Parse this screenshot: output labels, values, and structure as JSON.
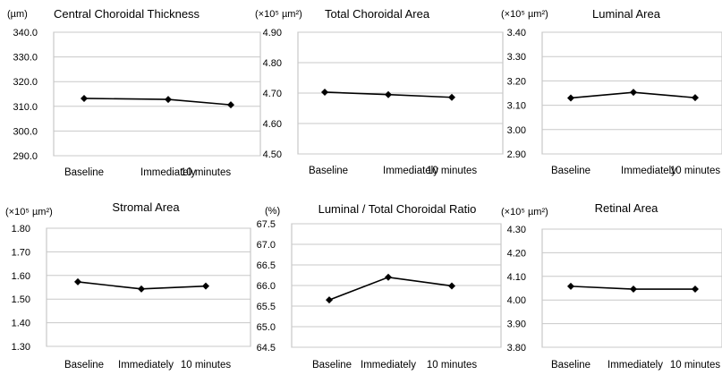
{
  "chart_data": [
    {
      "type": "line",
      "title": "Central Choroidal Thickness",
      "unit_label": "(µm)",
      "categories": [
        "Baseline",
        "Immediately",
        "10 minutes"
      ],
      "values": [
        313.2,
        312.8,
        310.6
      ],
      "ylim": [
        290.0,
        340.0
      ],
      "yticks": [
        "340.0",
        "330.0",
        "320.0",
        "310.0",
        "300.0",
        "290.0"
      ],
      "grid": true
    },
    {
      "type": "line",
      "title": "Total Choroidal Area",
      "unit_label": "(×10⁵ µm²)",
      "categories": [
        "Baseline",
        "Immediately",
        "10 minutes"
      ],
      "values": [
        4.703,
        4.695,
        4.686
      ],
      "ylim": [
        4.5,
        4.9
      ],
      "yticks": [
        "4.90",
        "4.80",
        "4.70",
        "4.60",
        "4.50"
      ],
      "grid": true
    },
    {
      "type": "line",
      "title": "Luminal Area",
      "unit_label": "(×10⁵ µm²)",
      "categories": [
        "Baseline",
        "Immediately",
        "10 minutes"
      ],
      "values": [
        3.13,
        3.153,
        3.131
      ],
      "ylim": [
        2.9,
        3.4
      ],
      "yticks": [
        "3.40",
        "3.30",
        "3.20",
        "3.10",
        "3.00",
        "2.90"
      ],
      "grid": true
    },
    {
      "type": "line",
      "title": "Stromal Area",
      "unit_label": "(×10⁵ µm²)",
      "categories": [
        "Baseline",
        "Immediately",
        "10 minutes"
      ],
      "values": [
        1.573,
        1.543,
        1.555
      ],
      "ylim": [
        1.3,
        1.8
      ],
      "yticks": [
        "1.80",
        "1.70",
        "1.60",
        "1.50",
        "1.40",
        "1.30"
      ],
      "grid": true
    },
    {
      "type": "line",
      "title": "Luminal / Total Choroidal Ratio",
      "unit_label": "(%)",
      "categories": [
        "Baseline",
        "Immediately",
        "10 minutes"
      ],
      "values": [
        65.65,
        66.2,
        65.99
      ],
      "ylim": [
        64.5,
        67.5
      ],
      "yticks": [
        "67.5",
        "67.0",
        "66.5",
        "66.0",
        "65.5",
        "65.0",
        "64.5"
      ],
      "grid": true
    },
    {
      "type": "line",
      "title": "Retinal Area",
      "unit_label": "(×10⁵ µm²)",
      "categories": [
        "Baseline",
        "Immediately",
        "10 minutes"
      ],
      "values": [
        4.058,
        4.046,
        4.046
      ],
      "ylim": [
        3.8,
        4.3
      ],
      "yticks": [
        "4.30",
        "4.20",
        "4.10",
        "4.00",
        "3.90",
        "3.80"
      ],
      "grid": true
    }
  ]
}
